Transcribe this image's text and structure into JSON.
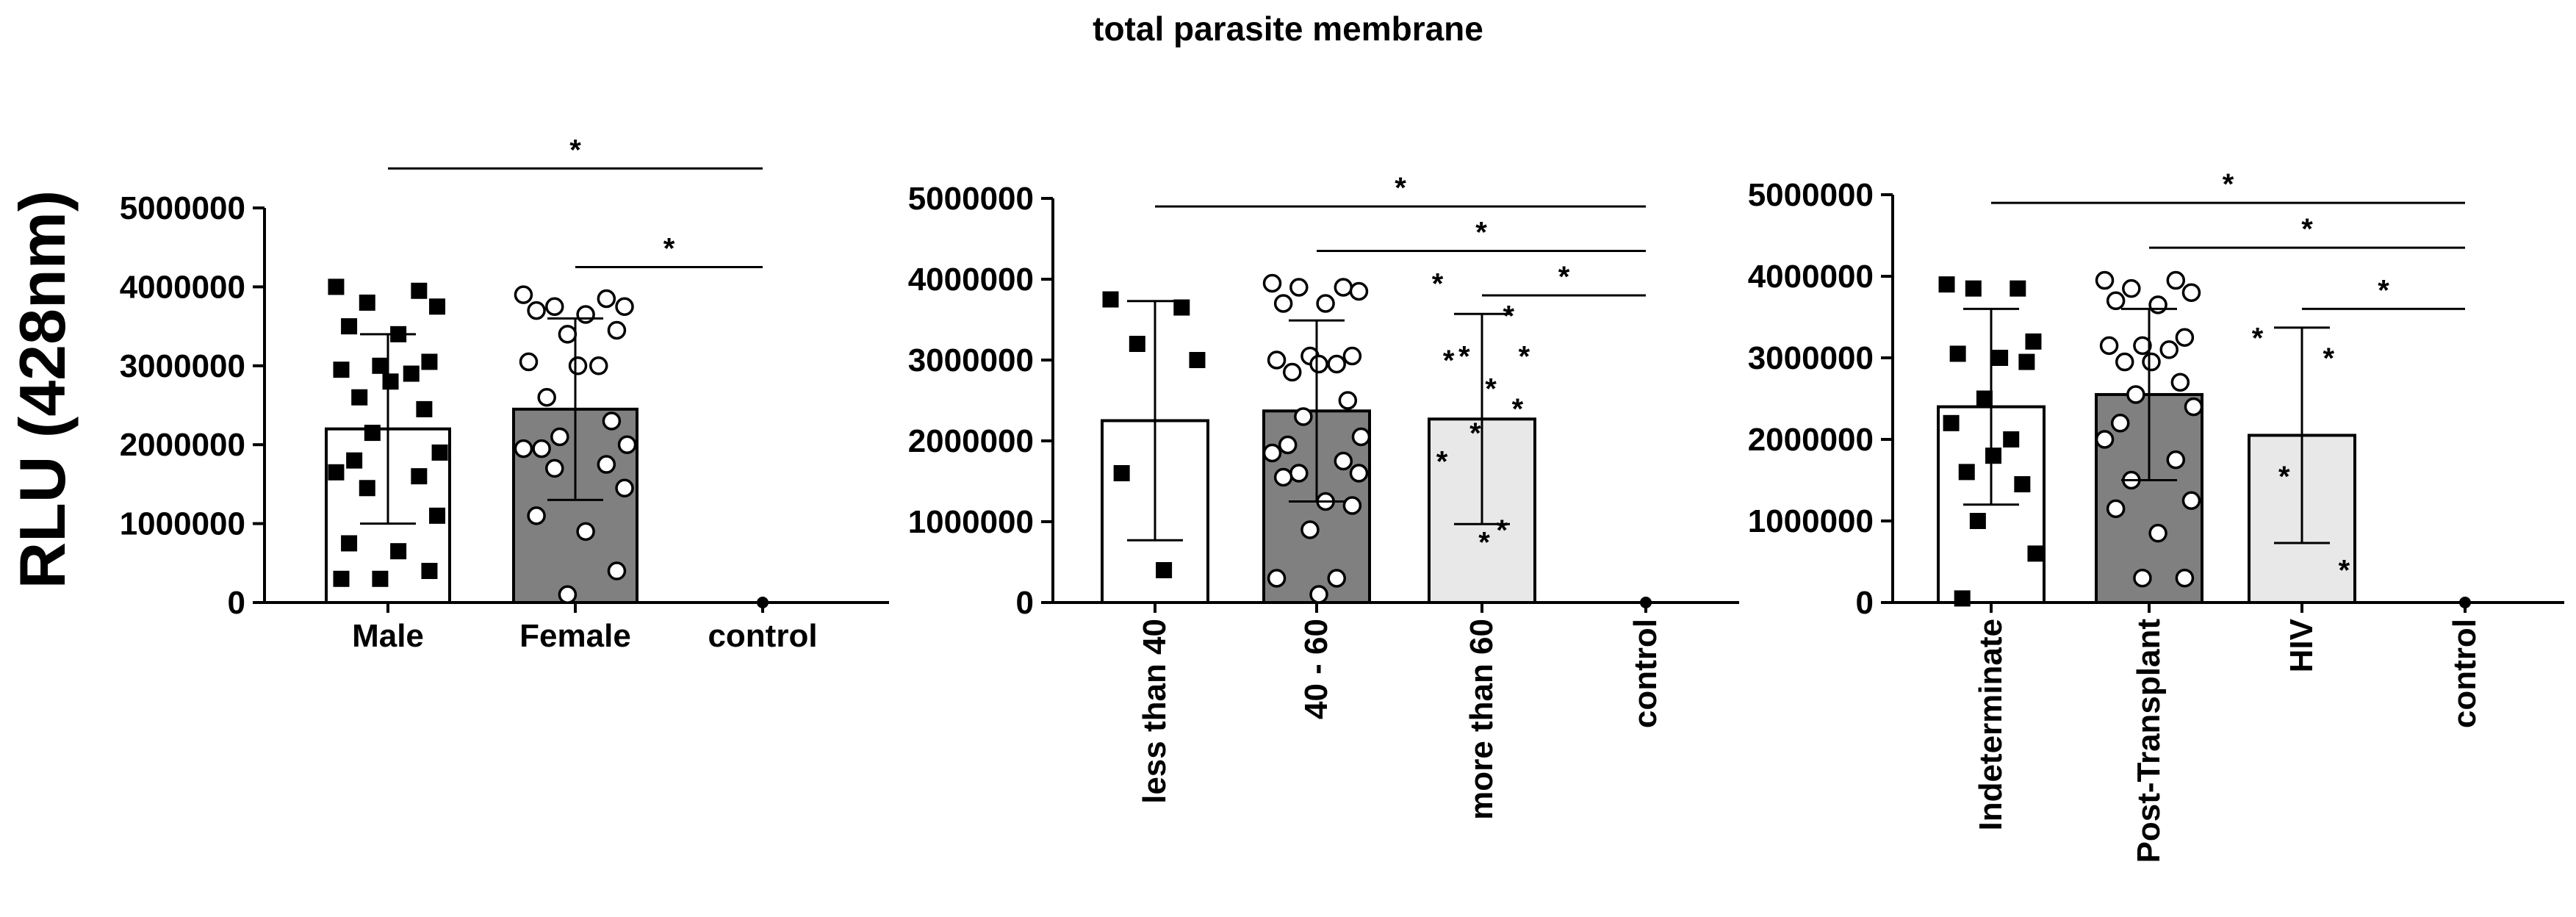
{
  "chart_data": {
    "type": "bar",
    "title": "total parasite membrane",
    "ylabel": "RLU (428nm)",
    "ylim": [
      0,
      5000000
    ],
    "yticks": [
      "0",
      "1000000",
      "2000000",
      "3000000",
      "4000000",
      "5000000"
    ],
    "colors": {
      "white": "#ffffff",
      "dark_gray": "#808080",
      "light_gray": "#e8e8e8",
      "ink": "#000000"
    },
    "panels": [
      {
        "categories": [
          "Male",
          "Female",
          "control"
        ],
        "rotate_labels": false,
        "bars": [
          {
            "category": "Male",
            "mean": 2200000,
            "sd": 1200000,
            "fill": "white",
            "marker": "square",
            "points": [
              4000000,
              3950000,
              3800000,
              3750000,
              3500000,
              3400000,
              3050000,
              3000000,
              2950000,
              2900000,
              2800000,
              2600000,
              2450000,
              2150000,
              1900000,
              1800000,
              1650000,
              1600000,
              1450000,
              1100000,
              750000,
              650000,
              400000,
              300000,
              300000
            ]
          },
          {
            "category": "Female",
            "mean": 2450000,
            "sd": 1150000,
            "fill": "dark_gray",
            "marker": "circle",
            "points": [
              3900000,
              3850000,
              3750000,
              3750000,
              3700000,
              3650000,
              3450000,
              3400000,
              3050000,
              3000000,
              3000000,
              2600000,
              2300000,
              2100000,
              2000000,
              1950000,
              1950000,
              1750000,
              1700000,
              1450000,
              1100000,
              900000,
              400000,
              100000
            ]
          },
          {
            "category": "control",
            "mean": 0,
            "sd": 0,
            "fill": "white",
            "marker": "dot",
            "points": [
              0
            ]
          }
        ],
        "brackets": [
          {
            "from": 0,
            "to": 2,
            "y": 5500000,
            "label": "*"
          },
          {
            "from": 1,
            "to": 2,
            "y": 4250000,
            "label": "*"
          }
        ]
      },
      {
        "categories": [
          "less than 40",
          "40 - 60",
          "more than 60",
          "control"
        ],
        "rotate_labels": true,
        "bars": [
          {
            "category": "less than 40",
            "mean": 2250000,
            "sd": 1480000,
            "fill": "white",
            "marker": "square",
            "points": [
              3750000,
              3650000,
              3200000,
              3000000,
              1600000,
              400000
            ]
          },
          {
            "category": "40 - 60",
            "mean": 2370000,
            "sd": 1120000,
            "fill": "dark_gray",
            "marker": "circle",
            "points": [
              3950000,
              3900000,
              3900000,
              3850000,
              3700000,
              3700000,
              3050000,
              3050000,
              3000000,
              2950000,
              2950000,
              2850000,
              2500000,
              2300000,
              2050000,
              1950000,
              1850000,
              1750000,
              1600000,
              1600000,
              1550000,
              1250000,
              1200000,
              900000,
              300000,
              300000,
              100000
            ]
          },
          {
            "category": "more than 60",
            "mean": 2270000,
            "sd": 1300000,
            "fill": "light_gray",
            "marker": "star",
            "points": [
              3950000,
              3550000,
              3050000,
              3050000,
              3000000,
              2650000,
              2400000,
              2100000,
              1750000,
              900000,
              750000
            ]
          },
          {
            "category": "control",
            "mean": 0,
            "sd": 0,
            "fill": "white",
            "marker": "dot",
            "points": [
              0
            ]
          }
        ],
        "brackets": [
          {
            "from": 0,
            "to": 3,
            "y": 4900000,
            "label": "*"
          },
          {
            "from": 1,
            "to": 3,
            "y": 4350000,
            "label": "*"
          },
          {
            "from": 2,
            "to": 3,
            "y": 3800000,
            "label": "*"
          }
        ]
      },
      {
        "categories": [
          "Indeterminate",
          "Post-Transplant",
          "HIV",
          "control"
        ],
        "rotate_labels": true,
        "bars": [
          {
            "category": "Indeterminate",
            "mean": 2400000,
            "sd": 1200000,
            "fill": "white",
            "marker": "square",
            "points": [
              3900000,
              3850000,
              3850000,
              3200000,
              3050000,
              3000000,
              2950000,
              2500000,
              2200000,
              2000000,
              1800000,
              1600000,
              1450000,
              1000000,
              600000,
              50000
            ]
          },
          {
            "category": "Post-Transplant",
            "mean": 2550000,
            "sd": 1050000,
            "fill": "dark_gray",
            "marker": "circle",
            "points": [
              3950000,
              3950000,
              3850000,
              3800000,
              3700000,
              3650000,
              3250000,
              3150000,
              3150000,
              3100000,
              2950000,
              2950000,
              2700000,
              2550000,
              2400000,
              2200000,
              2000000,
              1750000,
              1500000,
              1250000,
              1150000,
              850000,
              300000,
              300000
            ]
          },
          {
            "category": "HIV",
            "mean": 2050000,
            "sd": 1320000,
            "fill": "light_gray",
            "marker": "star",
            "points": [
              3250000,
              3000000,
              1550000,
              400000
            ]
          },
          {
            "category": "control",
            "mean": 0,
            "sd": 0,
            "fill": "white",
            "marker": "dot",
            "points": [
              0
            ]
          }
        ],
        "brackets": [
          {
            "from": 0,
            "to": 3,
            "y": 4900000,
            "label": "*"
          },
          {
            "from": 1,
            "to": 3,
            "y": 4350000,
            "label": "*"
          },
          {
            "from": 2,
            "to": 3,
            "y": 3600000,
            "label": "*"
          }
        ]
      }
    ]
  }
}
